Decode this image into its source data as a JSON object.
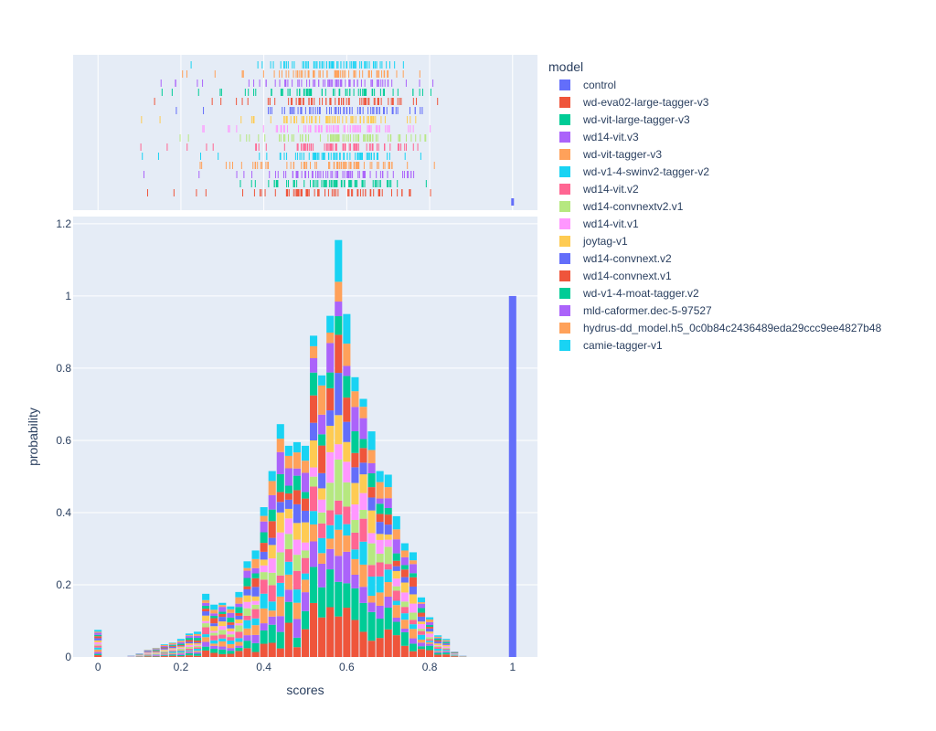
{
  "chart_data": {
    "type": "bar",
    "subtype": "stacked-histogram-with-rug",
    "xlabel": "scores",
    "ylabel": "probability",
    "xlim": [
      -0.06,
      1.06
    ],
    "ylim": [
      0,
      1.22
    ],
    "x_ticks": [
      0,
      0.2,
      0.4,
      0.6,
      0.8,
      1
    ],
    "x_tick_labels": [
      "0",
      "0.2",
      "0.4",
      "0.6",
      "0.8",
      "1"
    ],
    "y_ticks": [
      0,
      0.2,
      0.4,
      0.6,
      0.8,
      1,
      1.2
    ],
    "y_tick_labels": [
      "0",
      "0.2",
      "0.4",
      "0.6",
      "0.8",
      "1",
      "1.2"
    ],
    "grid": true,
    "legend_placement": "right",
    "legend_title": "model",
    "bin_width": 0.02,
    "bins_x": [
      0.0,
      0.08,
      0.1,
      0.12,
      0.14,
      0.16,
      0.18,
      0.2,
      0.22,
      0.24,
      0.26,
      0.28,
      0.3,
      0.32,
      0.34,
      0.36,
      0.38,
      0.4,
      0.42,
      0.44,
      0.46,
      0.48,
      0.5,
      0.52,
      0.54,
      0.56,
      0.58,
      0.6,
      0.62,
      0.64,
      0.66,
      0.68,
      0.7,
      0.72,
      0.74,
      0.76,
      0.78,
      0.8,
      0.82,
      0.84,
      0.86,
      0.88,
      1.0
    ],
    "totals": [
      0.075,
      0.005,
      0.01,
      0.02,
      0.025,
      0.035,
      0.04,
      0.05,
      0.065,
      0.07,
      0.175,
      0.145,
      0.15,
      0.14,
      0.18,
      0.265,
      0.295,
      0.415,
      0.515,
      0.645,
      0.585,
      0.595,
      0.585,
      0.89,
      0.78,
      0.945,
      1.155,
      0.95,
      0.775,
      0.715,
      0.625,
      0.515,
      0.505,
      0.39,
      0.315,
      0.29,
      0.165,
      0.11,
      0.06,
      0.05,
      0.015,
      0.005,
      1.0
    ],
    "series": [
      {
        "name": "control",
        "color": "#636efa"
      },
      {
        "name": "wd-eva02-large-tagger-v3",
        "color": "#ef553b"
      },
      {
        "name": "wd-vit-large-tagger-v3",
        "color": "#00cc96"
      },
      {
        "name": "wd14-vit.v3",
        "color": "#ab63fa"
      },
      {
        "name": "wd-vit-tagger-v3",
        "color": "#ffa15a"
      },
      {
        "name": "wd-v1-4-swinv2-tagger-v2",
        "color": "#19d3f3"
      },
      {
        "name": "wd14-vit.v2",
        "color": "#ff6692"
      },
      {
        "name": "wd14-convnextv2.v1",
        "color": "#b6e880"
      },
      {
        "name": "wd14-vit.v1",
        "color": "#ff97ff"
      },
      {
        "name": "joytag-v1",
        "color": "#fecb52"
      },
      {
        "name": "wd14-convnext.v2",
        "color": "#636efa"
      },
      {
        "name": "wd14-convnext.v1",
        "color": "#ef553b"
      },
      {
        "name": "wd-v1-4-moat-tagger.v2",
        "color": "#00cc96"
      },
      {
        "name": "mld-caformer.dec-5-97527",
        "color": "#ab63fa"
      },
      {
        "name": "hydrus-dd_model.h5_0c0b84c2436489eda29ccc9ee4827b48",
        "color": "#ffa15a"
      },
      {
        "name": "camie-tagger-v1",
        "color": "#19d3f3"
      }
    ]
  }
}
